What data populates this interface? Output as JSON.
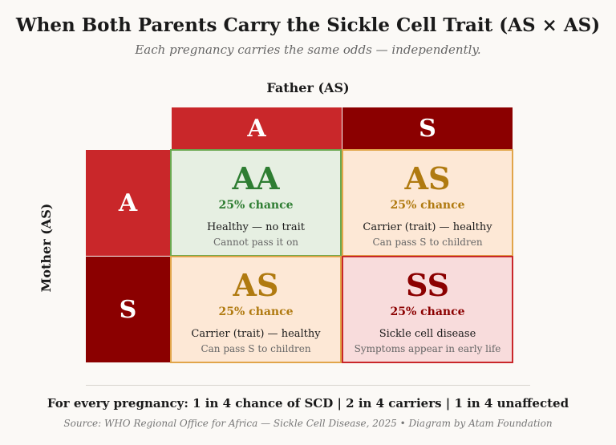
{
  "title": "When Both Parents Carry the Sickle Cell Trait (AS × AS)",
  "subtitle": "Each pregnancy carries the same odds — independently.",
  "father_label": "Father (AS)",
  "mother_label": "Mother (AS)",
  "father_alleles": [
    "A",
    "S"
  ],
  "mother_alleles": [
    "A",
    "S"
  ],
  "cells": [
    {
      "genotype": "AA",
      "chance": "25% chance",
      "status": "Healthy — no trait",
      "note": "Cannot pass it on",
      "color": "#2e7d32"
    },
    {
      "genotype": "AS",
      "chance": "25% chance",
      "status": "Carrier (trait) — healthy",
      "note": "Can pass S to children",
      "color": "#b07a10"
    },
    {
      "genotype": "AS",
      "chance": "25% chance",
      "status": "Carrier (trait) — healthy",
      "note": "Can pass S to children",
      "color": "#b07a10"
    },
    {
      "genotype": "SS",
      "chance": "25% chance",
      "status": "Sickle cell disease",
      "note": "Symptoms appear in early life",
      "color": "#8b0000"
    }
  ],
  "summary": "For every pregnancy: 1 in 4 chance of SCD | 2 in 4 carriers | 1 in 4 unaffected",
  "source": "Source: WHO Regional Office for Africa — Sickle Cell Disease, 2025 • Diagram by Atam Foundation",
  "colors": {
    "allele_A": "#c9272a",
    "allele_S": "#8b0000",
    "healthy_bg": "#e6efe2",
    "carrier_bg": "#fde8d6",
    "disease_bg": "#f8dcdc"
  }
}
